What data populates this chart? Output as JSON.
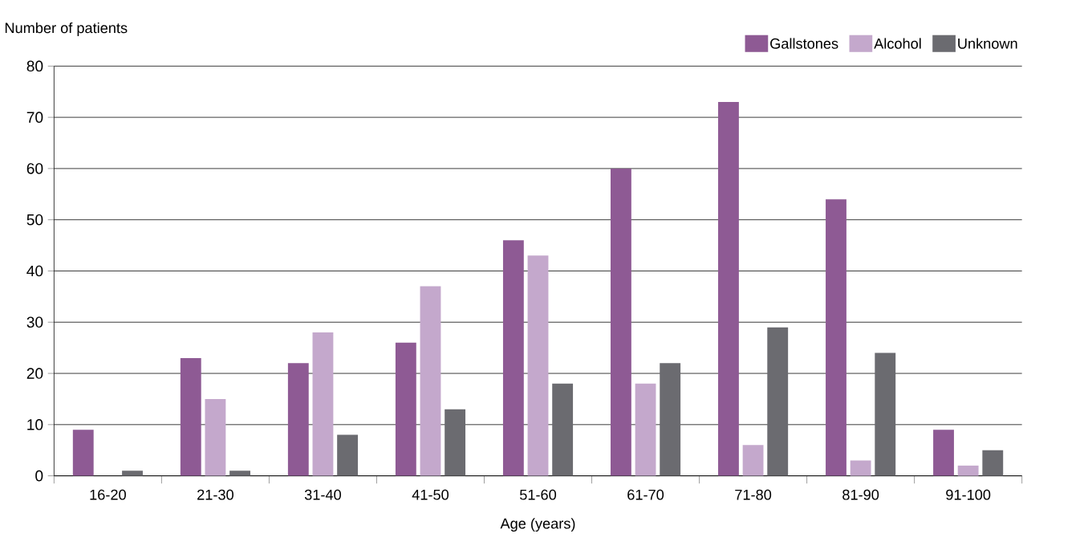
{
  "chart_data": {
    "type": "bar",
    "xlabel": "Age (years)",
    "ylabel": "Number of patients",
    "categories": [
      "16-20",
      "21-30",
      "31-40",
      "41-50",
      "51-60",
      "61-70",
      "71-80",
      "81-90",
      "91-100"
    ],
    "series": [
      {
        "name": "Gallstones",
        "color": "#8e5a94",
        "values": [
          9,
          23,
          22,
          26,
          46,
          60,
          73,
          54,
          9
        ]
      },
      {
        "name": "Alcohol",
        "color": "#c4a8cc",
        "values": [
          0,
          15,
          28,
          37,
          43,
          18,
          6,
          3,
          2
        ]
      },
      {
        "name": "Unknown",
        "color": "#6b6b70",
        "values": [
          1,
          1,
          8,
          13,
          18,
          22,
          29,
          24,
          5
        ]
      }
    ],
    "ylim": [
      0,
      80
    ],
    "yticks": [
      0,
      10,
      20,
      30,
      40,
      50,
      60,
      70,
      80
    ],
    "grid": "y",
    "legend": "top right"
  }
}
